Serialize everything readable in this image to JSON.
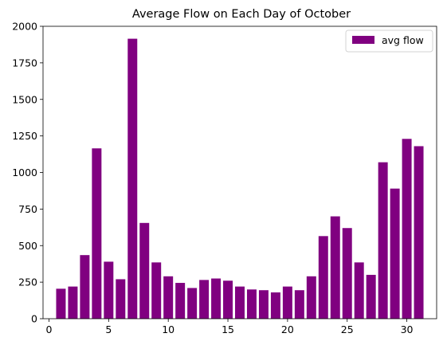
{
  "chart_data": {
    "type": "bar",
    "title": "Average Flow on Each Day of October",
    "xlabel": "",
    "ylabel": "",
    "xlim": [
      -0.5,
      32.5
    ],
    "ylim": [
      0,
      2000
    ],
    "xticks": [
      0,
      5,
      10,
      15,
      20,
      25,
      30
    ],
    "yticks": [
      0,
      250,
      500,
      750,
      1000,
      1250,
      1500,
      1750,
      2000
    ],
    "grid": false,
    "legend_position": "top-right",
    "bar_color": "#800080",
    "series": [
      {
        "name": "avg flow",
        "x": [
          1,
          2,
          3,
          4,
          5,
          6,
          7,
          8,
          9,
          10,
          11,
          12,
          13,
          14,
          15,
          16,
          17,
          18,
          19,
          20,
          21,
          22,
          23,
          24,
          25,
          26,
          27,
          28,
          29,
          30,
          31
        ],
        "values": [
          205,
          220,
          435,
          1165,
          390,
          270,
          1915,
          655,
          385,
          290,
          245,
          210,
          265,
          275,
          260,
          220,
          200,
          195,
          180,
          220,
          195,
          290,
          565,
          700,
          620,
          385,
          300,
          1070,
          890,
          1230,
          1180
        ]
      }
    ]
  }
}
